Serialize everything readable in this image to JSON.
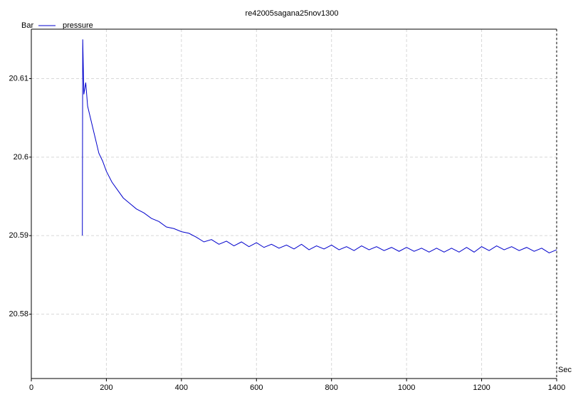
{
  "chart_data": {
    "type": "line",
    "title": "re42005sagana25nov1300",
    "ylabel": "Bar",
    "xlabel": "Sec",
    "x": [
      136,
      137,
      140,
      145,
      150,
      160,
      170,
      180,
      190,
      200,
      215,
      230,
      245,
      260,
      280,
      300,
      320,
      340,
      360,
      380,
      400,
      420,
      440,
      460,
      480,
      500,
      520,
      540,
      560,
      580,
      600,
      620,
      640,
      660,
      680,
      700,
      720,
      740,
      760,
      780,
      800,
      820,
      840,
      860,
      880,
      900,
      920,
      940,
      960,
      980,
      1000,
      1020,
      1040,
      1060,
      1080,
      1100,
      1120,
      1140,
      1160,
      1180,
      1200,
      1220,
      1240,
      1260,
      1280,
      1300,
      1320,
      1340,
      1360,
      1380,
      1400
    ],
    "series": [
      {
        "name": "pressure",
        "color": "#0000cc",
        "values": [
          20.59,
          20.615,
          20.608,
          20.6095,
          20.6065,
          20.6045,
          20.6025,
          20.6005,
          20.5995,
          20.5982,
          20.5968,
          20.5958,
          20.5948,
          20.5942,
          20.5934,
          20.5929,
          20.5922,
          20.5918,
          20.5911,
          20.5909,
          20.5905,
          20.5903,
          20.5898,
          20.5892,
          20.5895,
          20.5889,
          20.5893,
          20.5887,
          20.5892,
          20.5886,
          20.5891,
          20.5885,
          20.5889,
          20.5884,
          20.5888,
          20.5883,
          20.5889,
          20.5882,
          20.5887,
          20.5883,
          20.5888,
          20.5882,
          20.5886,
          20.5881,
          20.5887,
          20.5882,
          20.5886,
          20.5881,
          20.5885,
          20.588,
          20.5885,
          20.588,
          20.5884,
          20.5879,
          20.5884,
          20.5879,
          20.5884,
          20.5879,
          20.5885,
          20.5879,
          20.5886,
          20.5881,
          20.5887,
          20.5882,
          20.5886,
          20.5881,
          20.5885,
          20.588,
          20.5884,
          20.5878,
          20.5882
        ]
      }
    ],
    "xlim": [
      0,
      1400
    ],
    "xticks": [
      0,
      200,
      400,
      600,
      800,
      1000,
      1200,
      1400
    ],
    "ylim": [
      20.5718,
      20.6163
    ],
    "yticks": [
      20.58,
      20.59,
      20.6,
      20.61
    ],
    "grid": true
  }
}
